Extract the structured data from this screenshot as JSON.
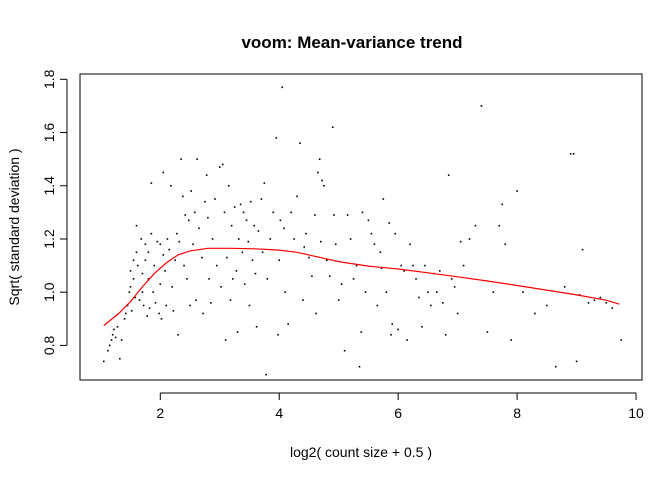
{
  "chart_data": {
    "type": "scatter",
    "title": "voom: Mean-variance trend",
    "xlabel": "log2( count size + 0.5 )",
    "ylabel": "Sqrt( standard deviation )",
    "xlim": [
      0.65,
      10.1
    ],
    "ylim": [
      0.67,
      1.82
    ],
    "x_ticks": [
      2,
      4,
      6,
      8,
      10
    ],
    "y_ticks": [
      0.8,
      1.0,
      1.2,
      1.4,
      1.6,
      1.8
    ],
    "x_tick_labels": [
      "2",
      "4",
      "6",
      "8",
      "10"
    ],
    "y_tick_labels": [
      "0.8",
      "1.0",
      "1.2",
      "1.4",
      "1.6",
      "1.8"
    ],
    "grid": false,
    "legend": "none",
    "point_color": "#000000",
    "trend_color": "#ff0000",
    "points": [
      [
        1.05,
        0.74
      ],
      [
        1.12,
        0.78
      ],
      [
        1.15,
        0.8
      ],
      [
        1.18,
        0.82
      ],
      [
        1.2,
        0.84
      ],
      [
        1.22,
        0.86
      ],
      [
        1.25,
        0.83
      ],
      [
        1.28,
        0.87
      ],
      [
        1.32,
        0.75
      ],
      [
        1.35,
        0.82
      ],
      [
        1.4,
        0.9
      ],
      [
        1.42,
        0.92
      ],
      [
        1.45,
        0.95
      ],
      [
        1.48,
        1.0
      ],
      [
        1.5,
        1.02
      ],
      [
        1.5,
        1.08
      ],
      [
        1.52,
        0.93
      ],
      [
        1.55,
        1.05
      ],
      [
        1.55,
        1.12
      ],
      [
        1.58,
        0.98
      ],
      [
        1.6,
        1.25
      ],
      [
        1.6,
        1.15
      ],
      [
        1.62,
        1.1
      ],
      [
        1.65,
        0.97
      ],
      [
        1.68,
        1.2
      ],
      [
        1.7,
        1.0
      ],
      [
        1.7,
        1.07
      ],
      [
        1.72,
        0.95
      ],
      [
        1.75,
        1.18
      ],
      [
        1.75,
        1.12
      ],
      [
        1.78,
        0.91
      ],
      [
        1.8,
        1.05
      ],
      [
        1.8,
        1.15
      ],
      [
        1.82,
        0.94
      ],
      [
        1.85,
        1.41
      ],
      [
        1.85,
        1.22
      ],
      [
        1.88,
        1.0
      ],
      [
        1.9,
        1.1
      ],
      [
        1.92,
        0.96
      ],
      [
        1.95,
        1.19
      ],
      [
        1.98,
        0.92
      ],
      [
        2.0,
        1.18
      ],
      [
        2.0,
        1.03
      ],
      [
        2.02,
        0.9
      ],
      [
        2.05,
        1.45
      ],
      [
        2.05,
        1.14
      ],
      [
        2.08,
        1.08
      ],
      [
        2.1,
        0.95
      ],
      [
        2.12,
        1.2
      ],
      [
        2.15,
        1.16
      ],
      [
        2.18,
        1.4
      ],
      [
        2.2,
        1.02
      ],
      [
        2.22,
        0.93
      ],
      [
        2.25,
        1.12
      ],
      [
        2.28,
        1.22
      ],
      [
        2.3,
        0.84
      ],
      [
        2.32,
        1.19
      ],
      [
        2.35,
        1.5
      ],
      [
        2.38,
        1.36
      ],
      [
        2.4,
        1.1
      ],
      [
        2.42,
        1.29
      ],
      [
        2.45,
        1.05
      ],
      [
        2.48,
        1.27
      ],
      [
        2.5,
        0.95
      ],
      [
        2.52,
        1.38
      ],
      [
        2.55,
        1.18
      ],
      [
        2.58,
        1.3
      ],
      [
        2.6,
        0.97
      ],
      [
        2.62,
        1.5
      ],
      [
        2.65,
        1.24
      ],
      [
        2.7,
        1.13
      ],
      [
        2.72,
        0.92
      ],
      [
        2.75,
        1.34
      ],
      [
        2.78,
        1.44
      ],
      [
        2.8,
        1.28
      ],
      [
        2.82,
        1.05
      ],
      [
        2.85,
        0.96
      ],
      [
        2.88,
        1.2
      ],
      [
        2.92,
        1.35
      ],
      [
        2.95,
        1.1
      ],
      [
        3.0,
        1.47
      ],
      [
        3.02,
        1.02
      ],
      [
        3.05,
        1.48
      ],
      [
        3.08,
        1.3
      ],
      [
        3.1,
        0.82
      ],
      [
        3.12,
        1.13
      ],
      [
        3.15,
        1.4
      ],
      [
        3.18,
        0.97
      ],
      [
        3.2,
        1.25
      ],
      [
        3.22,
        1.05
      ],
      [
        3.25,
        1.32
      ],
      [
        3.28,
        1.08
      ],
      [
        3.3,
        0.85
      ],
      [
        3.32,
        1.2
      ],
      [
        3.35,
        1.33
      ],
      [
        3.38,
        1.15
      ],
      [
        3.4,
        1.3
      ],
      [
        3.42,
        1.03
      ],
      [
        3.45,
        1.27
      ],
      [
        3.48,
        1.19
      ],
      [
        3.5,
        0.95
      ],
      [
        3.52,
        1.34
      ],
      [
        3.55,
        1.12
      ],
      [
        3.58,
        1.25
      ],
      [
        3.6,
        1.07
      ],
      [
        3.62,
        0.87
      ],
      [
        3.65,
        1.23
      ],
      [
        3.7,
        1.35
      ],
      [
        3.72,
        1.15
      ],
      [
        3.75,
        1.41
      ],
      [
        3.78,
        0.69
      ],
      [
        3.8,
        1.05
      ],
      [
        3.85,
        1.2
      ],
      [
        3.9,
        1.3
      ],
      [
        3.95,
        1.58
      ],
      [
        3.98,
        0.84
      ],
      [
        4.0,
        1.12
      ],
      [
        4.02,
        1.27
      ],
      [
        4.05,
        1.77
      ],
      [
        4.08,
        1.24
      ],
      [
        4.1,
        1.0
      ],
      [
        4.15,
        0.88
      ],
      [
        4.2,
        1.3
      ],
      [
        4.25,
        1.2
      ],
      [
        4.3,
        1.36
      ],
      [
        4.35,
        1.56
      ],
      [
        4.4,
        0.97
      ],
      [
        4.42,
        1.17
      ],
      [
        4.45,
        1.22
      ],
      [
        4.5,
        1.13
      ],
      [
        4.55,
        1.06
      ],
      [
        4.6,
        1.29
      ],
      [
        4.62,
        0.92
      ],
      [
        4.65,
        1.45
      ],
      [
        4.68,
        1.5
      ],
      [
        4.7,
        1.19
      ],
      [
        4.72,
        1.42
      ],
      [
        4.75,
        1.4
      ],
      [
        4.8,
        1.12
      ],
      [
        4.85,
        1.06
      ],
      [
        4.9,
        1.62
      ],
      [
        4.92,
        1.29
      ],
      [
        4.95,
        1.18
      ],
      [
        5.0,
        0.97
      ],
      [
        5.05,
        1.03
      ],
      [
        5.1,
        0.78
      ],
      [
        5.15,
        1.29
      ],
      [
        5.2,
        1.2
      ],
      [
        5.25,
        1.05
      ],
      [
        5.3,
        1.1
      ],
      [
        5.35,
        0.72
      ],
      [
        5.38,
        0.85
      ],
      [
        5.4,
        1.3
      ],
      [
        5.45,
        1.0
      ],
      [
        5.5,
        1.27
      ],
      [
        5.55,
        1.22
      ],
      [
        5.6,
        1.18
      ],
      [
        5.65,
        0.95
      ],
      [
        5.7,
        1.15
      ],
      [
        5.72,
        1.09
      ],
      [
        5.75,
        1.35
      ],
      [
        5.8,
        1.0
      ],
      [
        5.85,
        1.26
      ],
      [
        5.88,
        0.84
      ],
      [
        5.9,
        0.88
      ],
      [
        5.95,
        1.22
      ],
      [
        6.0,
        0.86
      ],
      [
        6.05,
        1.1
      ],
      [
        6.1,
        1.08
      ],
      [
        6.15,
        0.82
      ],
      [
        6.2,
        1.18
      ],
      [
        6.25,
        1.1
      ],
      [
        6.3,
        1.05
      ],
      [
        6.35,
        0.98
      ],
      [
        6.4,
        0.87
      ],
      [
        6.45,
        1.1
      ],
      [
        6.5,
        1.0
      ],
      [
        6.55,
        0.95
      ],
      [
        6.6,
        1.07
      ],
      [
        6.65,
        1.0
      ],
      [
        6.7,
        1.08
      ],
      [
        6.75,
        0.96
      ],
      [
        6.8,
        0.84
      ],
      [
        6.85,
        1.44
      ],
      [
        6.9,
        1.05
      ],
      [
        6.95,
        1.02
      ],
      [
        7.0,
        0.92
      ],
      [
        7.05,
        1.19
      ],
      [
        7.1,
        1.1
      ],
      [
        7.2,
        1.2
      ],
      [
        7.3,
        1.25
      ],
      [
        7.4,
        1.7
      ],
      [
        7.5,
        0.85
      ],
      [
        7.6,
        1.0
      ],
      [
        7.7,
        1.25
      ],
      [
        7.75,
        1.33
      ],
      [
        7.8,
        1.18
      ],
      [
        7.9,
        0.82
      ],
      [
        8.0,
        1.38
      ],
      [
        8.1,
        1.0
      ],
      [
        8.3,
        0.92
      ],
      [
        8.5,
        0.95
      ],
      [
        8.65,
        0.72
      ],
      [
        8.8,
        1.02
      ],
      [
        8.9,
        1.52
      ],
      [
        8.95,
        1.52
      ],
      [
        9.0,
        0.74
      ],
      [
        9.05,
        0.99
      ],
      [
        9.1,
        1.16
      ],
      [
        9.2,
        0.96
      ],
      [
        9.3,
        0.97
      ],
      [
        9.4,
        0.98
      ],
      [
        9.5,
        0.96
      ],
      [
        9.6,
        0.94
      ],
      [
        9.75,
        0.82
      ]
    ],
    "trend": [
      [
        1.05,
        0.875
      ],
      [
        1.3,
        0.92
      ],
      [
        1.5,
        0.965
      ],
      [
        1.7,
        1.02
      ],
      [
        1.9,
        1.07
      ],
      [
        2.1,
        1.11
      ],
      [
        2.3,
        1.14
      ],
      [
        2.5,
        1.155
      ],
      [
        2.8,
        1.165
      ],
      [
        3.2,
        1.165
      ],
      [
        3.6,
        1.163
      ],
      [
        4.0,
        1.158
      ],
      [
        4.3,
        1.15
      ],
      [
        4.6,
        1.135
      ],
      [
        5.0,
        1.115
      ],
      [
        5.5,
        1.098
      ],
      [
        6.0,
        1.087
      ],
      [
        6.5,
        1.073
      ],
      [
        7.0,
        1.058
      ],
      [
        7.5,
        1.042
      ],
      [
        8.0,
        1.025
      ],
      [
        8.5,
        1.008
      ],
      [
        9.0,
        0.99
      ],
      [
        9.5,
        0.97
      ],
      [
        9.72,
        0.955
      ]
    ]
  }
}
